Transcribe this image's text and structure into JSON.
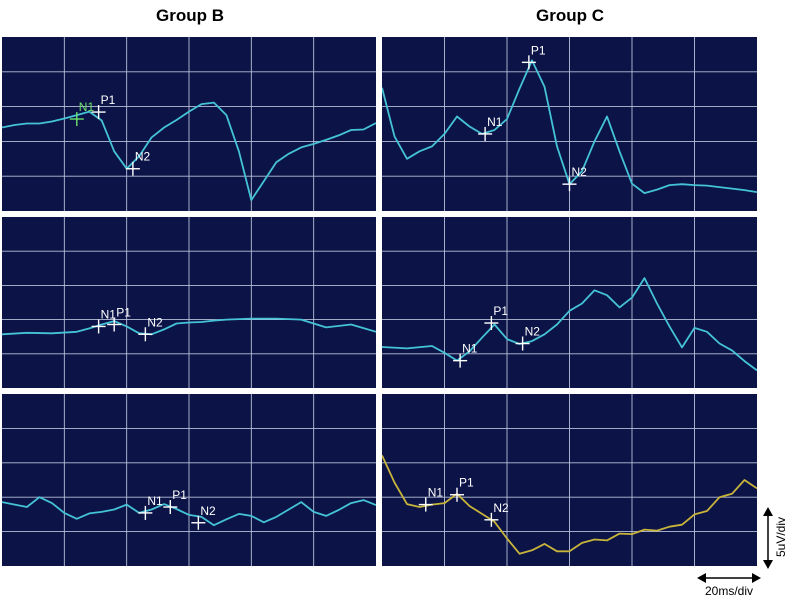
{
  "figure": {
    "colors": {
      "panel_bg": "#0c1447",
      "grid": "#b8bfd8",
      "trace": "#45c3d6",
      "trace_alt": "#c8b43a",
      "marker": "#ffffff",
      "marker_green": "#6be06b"
    },
    "groups": [
      {
        "title": "Group B"
      },
      {
        "title": "Group C"
      }
    ],
    "scale": {
      "vertical_label": "5uV/div",
      "horizontal_label": "20ms/div"
    }
  },
  "chart_data": [
    {
      "type": "line",
      "group": "Group B",
      "row": 1,
      "xlim": [
        0,
        120
      ],
      "ylim": [
        0,
        35
      ],
      "grid": true,
      "trace_color": "#45c3d6",
      "x": [
        0,
        4,
        8,
        12,
        16,
        20,
        24,
        28,
        32,
        36,
        40,
        44,
        48,
        52,
        56,
        60,
        64,
        68,
        72,
        76,
        80,
        84,
        88,
        92,
        96,
        100,
        104,
        108,
        112,
        116,
        120
      ],
      "values": [
        16.8,
        17.3,
        17.6,
        17.6,
        18.0,
        18.6,
        19.3,
        20.0,
        18.2,
        12.0,
        8.5,
        11.0,
        14.8,
        16.8,
        18.3,
        20.0,
        21.5,
        21.8,
        19.3,
        12.0,
        2.2,
        6.0,
        9.8,
        11.5,
        12.8,
        13.5,
        14.3,
        15.2,
        16.3,
        16.4,
        17.7
      ],
      "markers": [
        {
          "label": "N1",
          "x": 24,
          "y": 18.5,
          "color": "#6be06b"
        },
        {
          "label": "P1",
          "x": 31,
          "y": 19.9,
          "color": "#ffffff"
        },
        {
          "label": "N2",
          "x": 42,
          "y": 8.5,
          "color": "#ffffff"
        }
      ]
    },
    {
      "type": "line",
      "group": "Group C",
      "row": 1,
      "xlim": [
        0,
        120
      ],
      "ylim": [
        0,
        35
      ],
      "grid": true,
      "trace_color": "#45c3d6",
      "x": [
        0,
        4,
        8,
        12,
        16,
        20,
        24,
        28,
        32,
        36,
        40,
        44,
        48,
        52,
        56,
        60,
        64,
        68,
        72,
        76,
        80,
        84,
        88,
        92,
        96,
        100,
        104,
        108,
        112,
        116,
        120
      ],
      "values": [
        24.8,
        15.0,
        10.5,
        12.0,
        13.0,
        15.5,
        19.0,
        17.0,
        15.5,
        16.3,
        18.5,
        24.6,
        30.3,
        25.0,
        13.0,
        5.4,
        8.0,
        14.0,
        19.0,
        12.0,
        5.5,
        3.6,
        4.3,
        5.2,
        5.4,
        5.2,
        5.1,
        4.8,
        4.5,
        4.2,
        3.8
      ],
      "markers": [
        {
          "label": "N1",
          "x": 33,
          "y": 15.5,
          "color": "#ffffff"
        },
        {
          "label": "P1",
          "x": 47,
          "y": 29.9,
          "color": "#ffffff"
        },
        {
          "label": "N2",
          "x": 60,
          "y": 5.4,
          "color": "#ffffff"
        }
      ]
    },
    {
      "type": "line",
      "group": "Group B",
      "row": 2,
      "xlim": [
        0,
        120
      ],
      "ylim": [
        0,
        35
      ],
      "grid": true,
      "trace_color": "#45c3d6",
      "x": [
        0,
        8,
        16,
        24,
        28,
        32,
        36,
        40,
        44,
        48,
        52,
        56,
        60,
        64,
        68,
        72,
        80,
        88,
        96,
        104,
        112,
        120
      ],
      "values": [
        11.0,
        11.3,
        11.2,
        11.5,
        12.2,
        13.0,
        13.7,
        12.6,
        11.2,
        11.0,
        12.0,
        13.2,
        13.4,
        13.5,
        13.8,
        14.0,
        14.2,
        14.2,
        14.0,
        12.4,
        13.0,
        11.5
      ],
      "markers": [
        {
          "label": "N1",
          "x": 31,
          "y": 12.6,
          "color": "#ffffff"
        },
        {
          "label": "P1",
          "x": 36,
          "y": 13.0,
          "color": "#ffffff"
        },
        {
          "label": "N2",
          "x": 46,
          "y": 11.0,
          "color": "#ffffff"
        }
      ]
    },
    {
      "type": "line",
      "group": "Group C",
      "row": 2,
      "xlim": [
        0,
        120
      ],
      "ylim": [
        0,
        35
      ],
      "grid": true,
      "trace_color": "#45c3d6",
      "x": [
        0,
        8,
        16,
        20,
        24,
        28,
        32,
        36,
        40,
        44,
        48,
        52,
        56,
        60,
        64,
        68,
        72,
        76,
        80,
        84,
        88,
        92,
        96,
        100,
        104,
        108,
        112,
        116,
        120
      ],
      "values": [
        8.4,
        8.1,
        8.6,
        7.2,
        5.6,
        7.5,
        10.3,
        13.0,
        10.0,
        9.0,
        9.6,
        11.0,
        13.0,
        15.8,
        17.3,
        20.0,
        19.0,
        16.5,
        18.5,
        22.5,
        17.3,
        12.6,
        8.3,
        12.3,
        11.5,
        9.1,
        7.7,
        5.5,
        3.6
      ],
      "markers": [
        {
          "label": "N1",
          "x": 25,
          "y": 5.6,
          "color": "#ffffff"
        },
        {
          "label": "P1",
          "x": 35,
          "y": 13.3,
          "color": "#ffffff"
        },
        {
          "label": "N2",
          "x": 45,
          "y": 9.1,
          "color": "#ffffff"
        }
      ]
    },
    {
      "type": "line",
      "group": "Group B",
      "row": 3,
      "xlim": [
        0,
        120
      ],
      "ylim": [
        0,
        35
      ],
      "grid": true,
      "trace_color": "#45c3d6",
      "x": [
        0,
        8,
        12,
        16,
        20,
        24,
        28,
        32,
        36,
        40,
        44,
        48,
        52,
        56,
        60,
        64,
        68,
        72,
        76,
        80,
        84,
        88,
        92,
        96,
        100,
        104,
        108,
        112,
        116,
        120
      ],
      "values": [
        13.0,
        12.0,
        14.0,
        12.8,
        10.8,
        9.6,
        10.7,
        11.0,
        11.5,
        12.5,
        10.8,
        11.5,
        12.6,
        11.6,
        10.4,
        10.0,
        8.3,
        9.5,
        10.6,
        10.2,
        8.9,
        10.0,
        11.5,
        13.0,
        11.0,
        10.2,
        11.4,
        12.8,
        13.4,
        12.4
      ],
      "markers": [
        {
          "label": "N1",
          "x": 46,
          "y": 10.8,
          "color": "#ffffff"
        },
        {
          "label": "P1",
          "x": 54,
          "y": 12.0,
          "color": "#ffffff"
        },
        {
          "label": "N2",
          "x": 63,
          "y": 8.8,
          "color": "#ffffff"
        }
      ]
    },
    {
      "type": "line",
      "group": "Group C",
      "row": 3,
      "xlim": [
        0,
        120
      ],
      "ylim": [
        0,
        35
      ],
      "grid": true,
      "trace_color": "#c8b43a",
      "x": [
        0,
        4,
        8,
        12,
        16,
        20,
        24,
        28,
        32,
        36,
        40,
        44,
        48,
        52,
        56,
        60,
        64,
        68,
        72,
        76,
        80,
        84,
        88,
        92,
        96,
        100,
        104,
        108,
        112,
        116,
        120
      ],
      "values": [
        22.5,
        17.0,
        12.6,
        12.0,
        12.5,
        12.8,
        14.7,
        12.2,
        10.6,
        9.0,
        5.6,
        2.5,
        3.2,
        4.5,
        3.0,
        3.0,
        4.7,
        5.4,
        5.2,
        6.6,
        6.5,
        7.4,
        7.2,
        8.0,
        8.4,
        10.5,
        11.2,
        14.0,
        14.7,
        17.5,
        15.8
      ],
      "markers": [
        {
          "label": "N1",
          "x": 14,
          "y": 12.5,
          "color": "#ffffff"
        },
        {
          "label": "P1",
          "x": 24,
          "y": 14.5,
          "color": "#ffffff"
        },
        {
          "label": "N2",
          "x": 35,
          "y": 9.4,
          "color": "#ffffff"
        }
      ]
    }
  ]
}
